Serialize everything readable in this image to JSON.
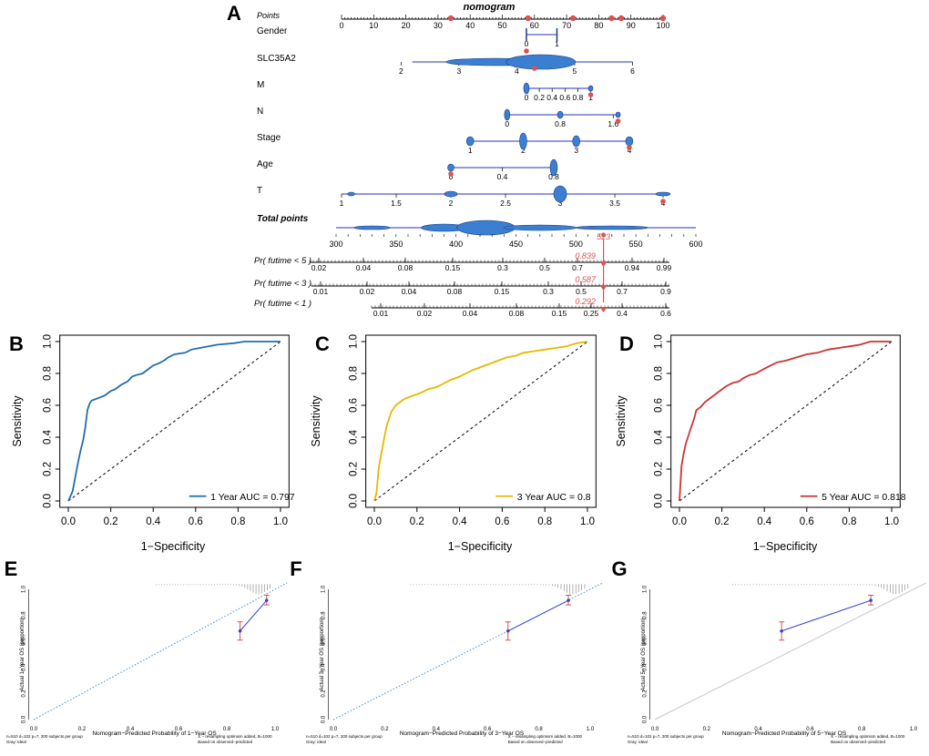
{
  "nomogram": {
    "panel_label": "A",
    "title": "nomogram",
    "points_label": "Points",
    "points_ticks": [
      "0",
      "10",
      "20",
      "30",
      "40",
      "50",
      "60",
      "70",
      "80",
      "90",
      "100"
    ],
    "variables": [
      {
        "name": "Gender",
        "ticks": [
          "0",
          "1"
        ]
      },
      {
        "name": "SLC35A2",
        "ticks": [
          "2",
          "3",
          "4",
          "5",
          "6"
        ]
      },
      {
        "name": "M",
        "ticks": [
          "0",
          "0.2",
          "0.4",
          "0.6",
          "0.8",
          "1"
        ]
      },
      {
        "name": "N",
        "ticks": [
          "0",
          "0.8",
          "1.6"
        ]
      },
      {
        "name": "Stage",
        "ticks": [
          "1",
          "2",
          "3",
          "4"
        ]
      },
      {
        "name": "Age",
        "ticks": [
          "0",
          "0.4",
          "0.8"
        ]
      },
      {
        "name": "T",
        "ticks": [
          "1",
          "1.5",
          "2",
          "2.5",
          "3",
          "3.5",
          "4"
        ]
      }
    ],
    "total_label": "Total points",
    "total_ticks": [
      "300",
      "350",
      "400",
      "450",
      "500",
      "550",
      "600"
    ],
    "total_value": "523",
    "prob_rows": [
      {
        "label": "Pr( futime < 5 )",
        "ticks": [
          "0.02",
          "0.04",
          "0.08",
          "0.15",
          "0.3",
          "0.5",
          "0.7",
          "0.94",
          "0.99"
        ],
        "value": "0.839"
      },
      {
        "label": "Pr( futime < 3 )",
        "ticks": [
          "0.01",
          "0.02",
          "0.04",
          "0.08",
          "0.15",
          "0.3",
          "0.5",
          "0.7",
          "0.9"
        ],
        "value": "0.587"
      },
      {
        "label": "Pr( futime < 1 )",
        "ticks": [
          "0.01",
          "0.02",
          "0.04",
          "0.08",
          "0.15",
          "0.25",
          "0.4",
          "0.6"
        ],
        "value": "0.292"
      }
    ]
  },
  "chart_data": [
    {
      "type": "line",
      "panel": "B",
      "xlabel": "1−Specificity",
      "ylabel": "Sensitivity",
      "ticks": [
        "0.0",
        "0.2",
        "0.4",
        "0.6",
        "0.8",
        "1.0"
      ],
      "legend": "1 Year AUC = 0.797",
      "color": "#1f6fae",
      "x": [
        0,
        0.02,
        0.03,
        0.04,
        0.05,
        0.06,
        0.07,
        0.08,
        0.09,
        0.1,
        0.11,
        0.13,
        0.15,
        0.17,
        0.19,
        0.2,
        0.22,
        0.25,
        0.28,
        0.3,
        0.32,
        0.35,
        0.37,
        0.4,
        0.42,
        0.45,
        0.47,
        0.5,
        0.55,
        0.58,
        0.62,
        0.66,
        0.7,
        0.78,
        0.83,
        0.88,
        0.92,
        1.0
      ],
      "y": [
        0,
        0.06,
        0.13,
        0.2,
        0.27,
        0.33,
        0.38,
        0.46,
        0.57,
        0.61,
        0.63,
        0.64,
        0.65,
        0.66,
        0.68,
        0.69,
        0.7,
        0.73,
        0.75,
        0.78,
        0.79,
        0.8,
        0.82,
        0.85,
        0.86,
        0.88,
        0.9,
        0.92,
        0.93,
        0.95,
        0.96,
        0.97,
        0.98,
        0.99,
        1.0,
        1.0,
        1.0,
        1.0
      ]
    },
    {
      "type": "line",
      "panel": "C",
      "xlabel": "1−Specificity",
      "ylabel": "Sensitivity",
      "ticks": [
        "0.0",
        "0.2",
        "0.4",
        "0.6",
        "0.8",
        "1.0"
      ],
      "legend": "3 Year AUC = 0.8",
      "color": "#e6b800",
      "x": [
        0,
        0.01,
        0.015,
        0.02,
        0.03,
        0.04,
        0.05,
        0.06,
        0.07,
        0.08,
        0.09,
        0.1,
        0.12,
        0.14,
        0.16,
        0.18,
        0.2,
        0.22,
        0.25,
        0.28,
        0.3,
        0.33,
        0.36,
        0.4,
        0.43,
        0.46,
        0.5,
        0.54,
        0.58,
        0.62,
        0.66,
        0.7,
        0.75,
        0.8,
        0.85,
        0.9,
        0.95,
        1.0
      ],
      "y": [
        0,
        0.05,
        0.12,
        0.2,
        0.28,
        0.35,
        0.42,
        0.48,
        0.52,
        0.56,
        0.58,
        0.6,
        0.62,
        0.64,
        0.65,
        0.66,
        0.67,
        0.68,
        0.7,
        0.71,
        0.72,
        0.74,
        0.76,
        0.78,
        0.8,
        0.82,
        0.84,
        0.86,
        0.88,
        0.9,
        0.91,
        0.93,
        0.94,
        0.95,
        0.96,
        0.97,
        0.99,
        1.0
      ]
    },
    {
      "type": "line",
      "panel": "D",
      "xlabel": "1−Specificity",
      "ylabel": "Sensitivity",
      "ticks": [
        "0.0",
        "0.2",
        "0.4",
        "0.6",
        "0.8",
        "1.0"
      ],
      "legend": "5 Year AUC = 0.818",
      "color": "#cc3333",
      "x": [
        0,
        0.01,
        0.02,
        0.03,
        0.04,
        0.05,
        0.06,
        0.07,
        0.08,
        0.1,
        0.12,
        0.14,
        0.16,
        0.18,
        0.2,
        0.22,
        0.25,
        0.28,
        0.3,
        0.33,
        0.36,
        0.4,
        0.43,
        0.46,
        0.5,
        0.55,
        0.6,
        0.65,
        0.7,
        0.75,
        0.8,
        0.85,
        0.9,
        1.0
      ],
      "y": [
        0,
        0.22,
        0.3,
        0.36,
        0.4,
        0.44,
        0.48,
        0.52,
        0.57,
        0.59,
        0.62,
        0.64,
        0.66,
        0.68,
        0.7,
        0.72,
        0.74,
        0.75,
        0.77,
        0.79,
        0.8,
        0.83,
        0.85,
        0.87,
        0.88,
        0.9,
        0.92,
        0.93,
        0.95,
        0.96,
        0.97,
        0.98,
        1.0,
        1.0
      ]
    },
    {
      "type": "scatter",
      "panel": "E",
      "xlabel": "Nomogram−Predicted Probability of 1−Year OS",
      "ylabel": "Actual 1−Year OS (proportion)",
      "ticks": [
        "0.0",
        "0.2",
        "0.4",
        "0.6",
        "0.8",
        "1.0"
      ],
      "points": [
        {
          "x": 0.855,
          "y": 0.68,
          "lo": 0.61,
          "hi": 0.75
        },
        {
          "x": 0.965,
          "y": 0.915,
          "lo": 0.88,
          "hi": 0.955
        }
      ],
      "note_left": "n=510 d=102 p=7, 200 subjects per group\nGray: ideal",
      "note_right": "X − resampling optimism added, B=1000\nBased on observed−predicted"
    },
    {
      "type": "scatter",
      "panel": "F",
      "xlabel": "Nomogram−Predicted Probability of 3−Year OS",
      "ylabel": "Actual 3−Year OS (proportion)",
      "ticks": [
        "0.0",
        "0.2",
        "0.4",
        "0.6",
        "0.8",
        "1.0"
      ],
      "points": [
        {
          "x": 0.68,
          "y": 0.68,
          "lo": 0.61,
          "hi": 0.75
        },
        {
          "x": 0.915,
          "y": 0.915,
          "lo": 0.88,
          "hi": 0.955
        }
      ],
      "note_left": "n=510 d=102 p=7, 200 subjects per group\nGray: ideal",
      "note_right": "X − resampling optimism added, B=1000\nBased on observed−predicted"
    },
    {
      "type": "scatter",
      "panel": "G",
      "xlabel": "Nomogram−Predicted Probability of 5−Year OS",
      "ylabel": "Actual 5−Year OS (proportion)",
      "ticks": [
        "0.0",
        "0.2",
        "0.4",
        "0.6",
        "0.8",
        "1.0"
      ],
      "points": [
        {
          "x": 0.49,
          "y": 0.68,
          "lo": 0.61,
          "hi": 0.75
        },
        {
          "x": 0.835,
          "y": 0.915,
          "lo": 0.88,
          "hi": 0.955
        }
      ],
      "note_left": "n=510 d=102 p=7, 200 subjects per group\nGray: ideal",
      "note_right": "X − resampling optimism added, B=1000\nBased on observed−predicted"
    }
  ]
}
